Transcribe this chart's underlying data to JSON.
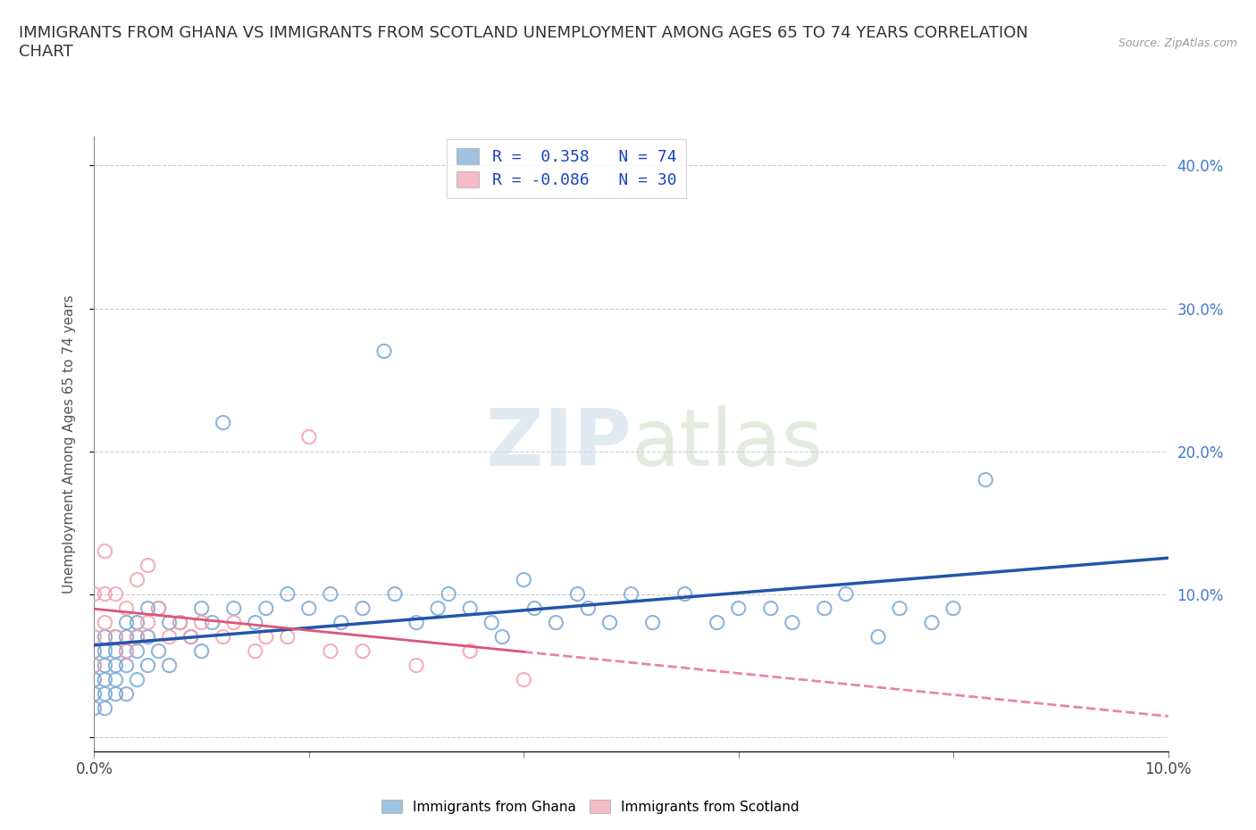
{
  "title": "IMMIGRANTS FROM GHANA VS IMMIGRANTS FROM SCOTLAND UNEMPLOYMENT AMONG AGES 65 TO 74 YEARS CORRELATION\nCHART",
  "source": "Source: ZipAtlas.com",
  "ylabel": "Unemployment Among Ages 65 to 74 years",
  "xlim": [
    0.0,
    0.1
  ],
  "ylim": [
    -0.01,
    0.42
  ],
  "xticks": [
    0.0,
    0.02,
    0.04,
    0.06,
    0.08,
    0.1
  ],
  "yticks": [
    0.0,
    0.1,
    0.2,
    0.3,
    0.4
  ],
  "xtick_labels": [
    "0.0%",
    "",
    "",
    "",
    "",
    "10.0%"
  ],
  "right_ytick_labels": [
    "",
    "10.0%",
    "20.0%",
    "30.0%",
    "40.0%"
  ],
  "ghana_color": "#7aa8d4",
  "scotland_color": "#f4a0b0",
  "ghana_line_color": "#2255aa",
  "scotland_line_color": "#dd5577",
  "ghana_R": 0.358,
  "ghana_N": 74,
  "scotland_R": -0.086,
  "scotland_N": 30,
  "legend_text_color": "#1a44bb",
  "ghana_x": [
    0.0,
    0.0,
    0.0,
    0.0,
    0.0,
    0.001,
    0.001,
    0.001,
    0.001,
    0.001,
    0.001,
    0.002,
    0.002,
    0.002,
    0.002,
    0.002,
    0.003,
    0.003,
    0.003,
    0.003,
    0.003,
    0.004,
    0.004,
    0.004,
    0.004,
    0.005,
    0.005,
    0.005,
    0.006,
    0.006,
    0.007,
    0.007,
    0.008,
    0.009,
    0.01,
    0.01,
    0.011,
    0.012,
    0.013,
    0.015,
    0.016,
    0.018,
    0.02,
    0.022,
    0.023,
    0.025,
    0.027,
    0.028,
    0.03,
    0.032,
    0.033,
    0.035,
    0.037,
    0.038,
    0.04,
    0.041,
    0.043,
    0.045,
    0.046,
    0.048,
    0.05,
    0.052,
    0.055,
    0.058,
    0.06,
    0.063,
    0.065,
    0.068,
    0.07,
    0.073,
    0.075,
    0.078,
    0.08,
    0.083
  ],
  "ghana_y": [
    0.02,
    0.03,
    0.04,
    0.05,
    0.06,
    0.02,
    0.03,
    0.04,
    0.05,
    0.06,
    0.07,
    0.03,
    0.04,
    0.05,
    0.06,
    0.07,
    0.03,
    0.05,
    0.06,
    0.07,
    0.08,
    0.04,
    0.06,
    0.07,
    0.08,
    0.05,
    0.07,
    0.09,
    0.06,
    0.09,
    0.05,
    0.08,
    0.08,
    0.07,
    0.06,
    0.09,
    0.08,
    0.22,
    0.09,
    0.08,
    0.09,
    0.1,
    0.09,
    0.1,
    0.08,
    0.09,
    0.27,
    0.1,
    0.08,
    0.09,
    0.1,
    0.09,
    0.08,
    0.07,
    0.11,
    0.09,
    0.08,
    0.1,
    0.09,
    0.08,
    0.1,
    0.08,
    0.1,
    0.08,
    0.09,
    0.09,
    0.08,
    0.09,
    0.1,
    0.07,
    0.09,
    0.08,
    0.09,
    0.18
  ],
  "scotland_x": [
    0.0,
    0.0,
    0.0,
    0.001,
    0.001,
    0.001,
    0.002,
    0.002,
    0.003,
    0.003,
    0.004,
    0.004,
    0.005,
    0.005,
    0.006,
    0.007,
    0.008,
    0.009,
    0.01,
    0.012,
    0.013,
    0.015,
    0.016,
    0.018,
    0.02,
    0.022,
    0.025,
    0.03,
    0.035,
    0.04
  ],
  "scotland_y": [
    0.05,
    0.07,
    0.1,
    0.08,
    0.1,
    0.13,
    0.07,
    0.1,
    0.06,
    0.09,
    0.07,
    0.11,
    0.08,
    0.12,
    0.09,
    0.07,
    0.08,
    0.07,
    0.08,
    0.07,
    0.08,
    0.06,
    0.07,
    0.07,
    0.21,
    0.06,
    0.06,
    0.05,
    0.06,
    0.04
  ]
}
